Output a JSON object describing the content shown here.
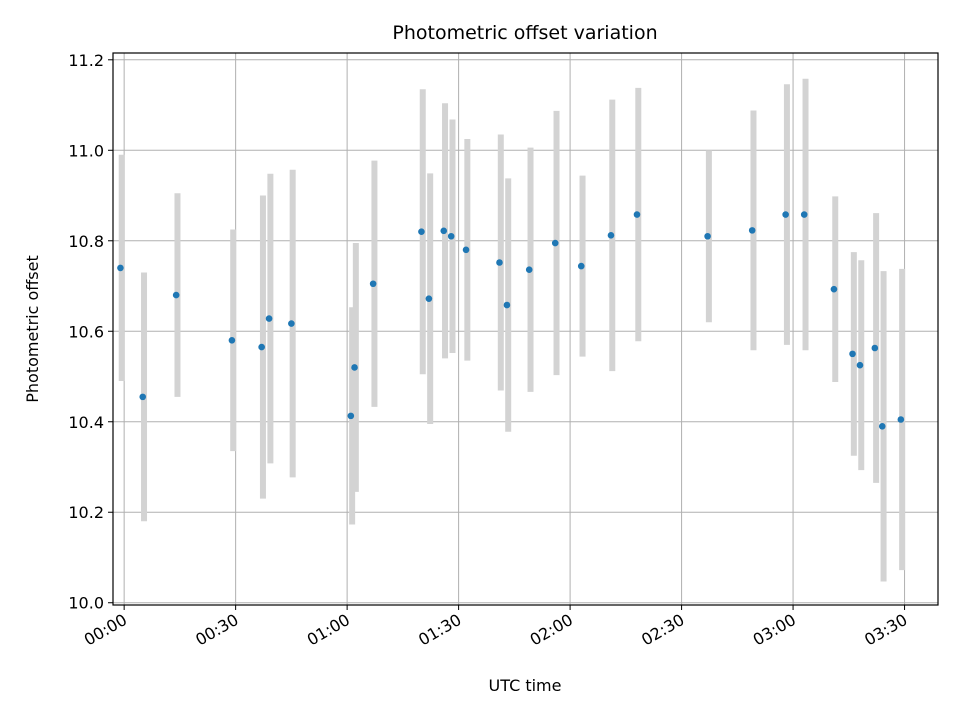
{
  "chart_data": {
    "type": "scatter",
    "title": "Photometric offset variation",
    "xlabel": "UTC time",
    "ylabel": "Photometric offset",
    "grid": true,
    "x_ticks": [
      "00:00",
      "00:30",
      "01:00",
      "01:30",
      "02:00",
      "02:30",
      "03:00",
      "03:30"
    ],
    "y_ticks": [
      "10.0",
      "10.2",
      "10.4",
      "10.6",
      "10.8",
      "11.0",
      "11.2"
    ],
    "xlim": [
      "23:57",
      "03:39"
    ],
    "ylim": [
      9.995,
      11.215
    ],
    "colors": {
      "point": "#1f77b4",
      "errorbar": "#d3d3d3",
      "grid": "#b0b0b0"
    },
    "points": [
      {
        "t": "23:59",
        "y": 10.74,
        "err": 0.25
      },
      {
        "t": "00:05",
        "y": 10.455,
        "err": 0.275
      },
      {
        "t": "00:14",
        "y": 10.68,
        "err": 0.225
      },
      {
        "t": "00:29",
        "y": 10.58,
        "err": 0.245
      },
      {
        "t": "00:37",
        "y": 10.565,
        "err": 0.335
      },
      {
        "t": "00:39",
        "y": 10.628,
        "err": 0.32
      },
      {
        "t": "00:45",
        "y": 10.617,
        "err": 0.34
      },
      {
        "t": "01:01",
        "y": 10.413,
        "err": 0.24
      },
      {
        "t": "01:02",
        "y": 10.52,
        "err": 0.275
      },
      {
        "t": "01:07",
        "y": 10.705,
        "err": 0.272
      },
      {
        "t": "01:20",
        "y": 10.82,
        "err": 0.315
      },
      {
        "t": "01:22",
        "y": 10.672,
        "err": 0.277
      },
      {
        "t": "01:26",
        "y": 10.822,
        "err": 0.282
      },
      {
        "t": "01:28",
        "y": 10.81,
        "err": 0.258
      },
      {
        "t": "01:32",
        "y": 10.78,
        "err": 0.245
      },
      {
        "t": "01:41",
        "y": 10.752,
        "err": 0.283
      },
      {
        "t": "01:43",
        "y": 10.658,
        "err": 0.28
      },
      {
        "t": "01:49",
        "y": 10.736,
        "err": 0.27
      },
      {
        "t": "01:56",
        "y": 10.795,
        "err": 0.292
      },
      {
        "t": "02:03",
        "y": 10.744,
        "err": 0.2
      },
      {
        "t": "02:11",
        "y": 10.812,
        "err": 0.3
      },
      {
        "t": "02:18",
        "y": 10.858,
        "err": 0.28
      },
      {
        "t": "02:37",
        "y": 10.81,
        "err": 0.19
      },
      {
        "t": "02:49",
        "y": 10.823,
        "err": 0.265
      },
      {
        "t": "02:58",
        "y": 10.858,
        "err": 0.288
      },
      {
        "t": "03:03",
        "y": 10.858,
        "err": 0.3
      },
      {
        "t": "03:11",
        "y": 10.693,
        "err": 0.205
      },
      {
        "t": "03:16",
        "y": 10.55,
        "err": 0.225
      },
      {
        "t": "03:18",
        "y": 10.525,
        "err": 0.232
      },
      {
        "t": "03:22",
        "y": 10.563,
        "err": 0.298
      },
      {
        "t": "03:24",
        "y": 10.39,
        "err": 0.343
      },
      {
        "t": "03:29",
        "y": 10.405,
        "err": 0.333
      }
    ]
  }
}
